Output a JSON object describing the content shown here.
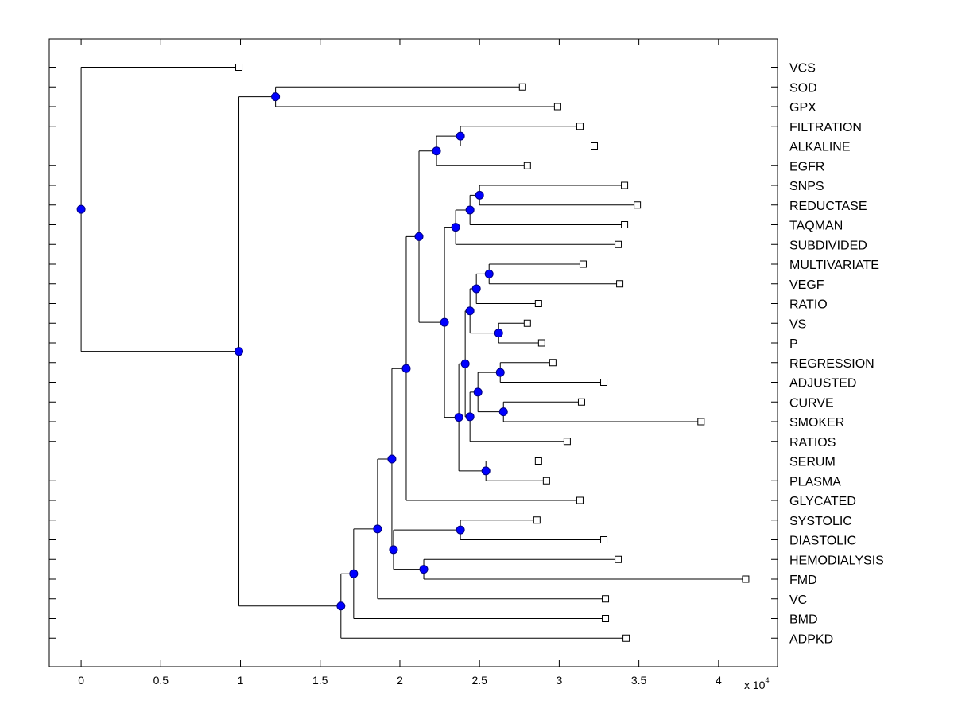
{
  "chart_data": {
    "type": "dendrogram",
    "title": "",
    "xlabel": "",
    "ylabel": "",
    "x_multiplier_label": {
      "base": "x 10",
      "exponent": "4"
    },
    "xlim": [
      -0.2,
      4.37
    ],
    "xticks": [
      0,
      0.5,
      1,
      1.5,
      2,
      2.5,
      3,
      3.5,
      4
    ],
    "xtick_labels": [
      "0",
      "0.5",
      "1",
      "1.5",
      "2",
      "2.5",
      "3",
      "3.5",
      "4"
    ],
    "orientation": "root-left",
    "colors": {
      "node_fill": "#0000ff",
      "node_stroke": "#000080",
      "leaf_fill": "#ffffff",
      "line": "#000000"
    },
    "leaves": [
      {
        "id": "VCS",
        "label": "VCS",
        "value": 0.99
      },
      {
        "id": "SOD",
        "label": "SOD",
        "value": 2.77
      },
      {
        "id": "GPX",
        "label": "GPX",
        "value": 2.99
      },
      {
        "id": "FILTRATION",
        "label": "FILTRATION",
        "value": 3.13
      },
      {
        "id": "ALKALINE",
        "label": "ALKALINE",
        "value": 3.22
      },
      {
        "id": "EGFR",
        "label": "EGFR",
        "value": 2.8
      },
      {
        "id": "SNPS",
        "label": "SNPS",
        "value": 3.41
      },
      {
        "id": "REDUCTASE",
        "label": "REDUCTASE",
        "value": 3.49
      },
      {
        "id": "TAQMAN",
        "label": "TAQMAN",
        "value": 3.41
      },
      {
        "id": "SUBDIVIDED",
        "label": "SUBDIVIDED",
        "value": 3.37
      },
      {
        "id": "MULTIVARIATE",
        "label": "MULTIVARIATE",
        "value": 3.15
      },
      {
        "id": "VEGF",
        "label": "VEGF",
        "value": 3.38
      },
      {
        "id": "RATIO",
        "label": "RATIO",
        "value": 2.87
      },
      {
        "id": "VS",
        "label": "VS",
        "value": 2.8
      },
      {
        "id": "P",
        "label": "P",
        "value": 2.89
      },
      {
        "id": "REGRESSION",
        "label": "REGRESSION",
        "value": 2.96
      },
      {
        "id": "ADJUSTED",
        "label": "ADJUSTED",
        "value": 3.28
      },
      {
        "id": "CURVE",
        "label": "CURVE",
        "value": 3.14
      },
      {
        "id": "SMOKER",
        "label": "SMOKER",
        "value": 3.89
      },
      {
        "id": "RATIOS",
        "label": "RATIOS",
        "value": 3.05
      },
      {
        "id": "SERUM",
        "label": "SERUM",
        "value": 2.87
      },
      {
        "id": "PLASMA",
        "label": "PLASMA",
        "value": 2.92
      },
      {
        "id": "GLYCATED",
        "label": "GLYCATED",
        "value": 3.13
      },
      {
        "id": "SYSTOLIC",
        "label": "SYSTOLIC",
        "value": 2.86
      },
      {
        "id": "DIASTOLIC",
        "label": "DIASTOLIC",
        "value": 3.28
      },
      {
        "id": "HEMODIALYSIS",
        "label": "HEMODIALYSIS",
        "value": 3.37
      },
      {
        "id": "FMD",
        "label": "FMD",
        "value": 4.17
      },
      {
        "id": "VC",
        "label": "VC",
        "value": 3.29
      },
      {
        "id": "BMD",
        "label": "BMD",
        "value": 3.29
      },
      {
        "id": "ADPKD",
        "label": "ADPKD",
        "value": 3.42
      }
    ],
    "nodes": [
      {
        "id": "n_root",
        "value": 0.0,
        "children": [
          "VCS",
          "n_main"
        ]
      },
      {
        "id": "n_main",
        "value": 0.99,
        "children": [
          "n_sodgpx",
          "n_adpkd"
        ]
      },
      {
        "id": "n_sodgpx",
        "value": 1.22,
        "children": [
          "SOD",
          "GPX"
        ]
      },
      {
        "id": "n_adpkd",
        "value": 1.63,
        "children": [
          "n_bmd",
          "ADPKD"
        ]
      },
      {
        "id": "n_bmd",
        "value": 1.71,
        "children": [
          "n_vc",
          "BMD"
        ]
      },
      {
        "id": "n_vc",
        "value": 1.86,
        "children": [
          "n_big",
          "VC"
        ]
      },
      {
        "id": "n_big",
        "value": 1.95,
        "children": [
          "n_glyc",
          "n_sysdia_fmd"
        ]
      },
      {
        "id": "n_sysdia_fmd",
        "value": 1.96,
        "children": [
          "n_sysdia",
          "n_hemofmd"
        ]
      },
      {
        "id": "n_sysdia",
        "value": 2.38,
        "children": [
          "SYSTOLIC",
          "DIASTOLIC"
        ]
      },
      {
        "id": "n_hemofmd",
        "value": 2.15,
        "children": [
          "HEMODIALYSIS",
          "FMD"
        ]
      },
      {
        "id": "n_glyc",
        "value": 2.04,
        "children": [
          "n_top",
          "GLYCATED"
        ]
      },
      {
        "id": "n_top",
        "value": 2.12,
        "children": [
          "n_filt_egfr",
          "n_mid"
        ]
      },
      {
        "id": "n_filt_egfr",
        "value": 2.23,
        "children": [
          "n_filt",
          "EGFR"
        ]
      },
      {
        "id": "n_filt",
        "value": 2.38,
        "children": [
          "FILTRATION",
          "ALKALINE"
        ]
      },
      {
        "id": "n_mid",
        "value": 2.28,
        "children": [
          "n_snps_sub",
          "n_lower"
        ]
      },
      {
        "id": "n_snps_sub",
        "value": 2.35,
        "children": [
          "n_snps_taq",
          "SUBDIVIDED"
        ]
      },
      {
        "id": "n_snps_taq",
        "value": 2.44,
        "children": [
          "n_snps",
          "TAQMAN"
        ]
      },
      {
        "id": "n_snps",
        "value": 2.5,
        "children": [
          "SNPS",
          "REDUCTASE"
        ]
      },
      {
        "id": "n_lower",
        "value": 2.37,
        "children": [
          "n_reg_ratios",
          "n_serum"
        ]
      },
      {
        "id": "n_serum",
        "value": 2.54,
        "children": [
          "SERUM",
          "PLASMA"
        ]
      },
      {
        "id": "n_reg_ratios",
        "value": 2.41,
        "children": [
          "n_multi",
          "n_reg2"
        ]
      },
      {
        "id": "n_multi",
        "value": 2.44,
        "children": [
          "n_multi_ratio",
          "n_vsp"
        ]
      },
      {
        "id": "n_multi_ratio",
        "value": 2.48,
        "children": [
          "n_mv",
          "RATIO"
        ]
      },
      {
        "id": "n_mv",
        "value": 2.56,
        "children": [
          "MULTIVARIATE",
          "VEGF"
        ]
      },
      {
        "id": "n_vsp",
        "value": 2.62,
        "children": [
          "VS",
          "P"
        ]
      },
      {
        "id": "n_reg2",
        "value": 2.44,
        "children": [
          "n_reg",
          "RATIOS"
        ]
      },
      {
        "id": "n_reg",
        "value": 2.49,
        "children": [
          "n_regadj",
          "n_cs"
        ]
      },
      {
        "id": "n_regadj",
        "value": 2.63,
        "children": [
          "REGRESSION",
          "ADJUSTED"
        ]
      },
      {
        "id": "n_cs",
        "value": 2.65,
        "children": [
          "CURVE",
          "SMOKER"
        ]
      }
    ]
  }
}
